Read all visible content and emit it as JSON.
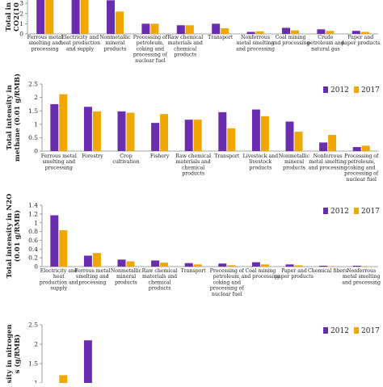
{
  "colors": {
    "series_2012": "#6a2db0",
    "series_2017": "#f0a800",
    "axis": "#888888"
  },
  "chart_data": [
    {
      "type": "bar",
      "ylabel": "Total in\nCO2(10",
      "yticks": [
        "0",
        "1",
        "2",
        "3"
      ],
      "ylim": [
        0,
        3.8
      ],
      "legend": {
        "show": false,
        "labels": [
          "2012",
          "2017"
        ]
      },
      "categories": [
        "Ferrous metal\nsmelting and\nprocessing",
        "Electricity and\nheat production\nand supply",
        "Nonmetallic\nmineral\nproducts",
        "Processing of\npetroleum,\ncoking and\nprocessing of\nnuclear fuel",
        "Raw chemical\nmaterials and\nchemical\nproducts",
        "Transport",
        "Nonferrous\nmetal smelting\nand processing",
        "Coal mining\nand processing",
        "Crude\npetroleum and\nnatural gas",
        "Paper and\npaper products"
      ],
      "series": [
        {
          "name": "2012",
          "values": [
            3.8,
            3.8,
            3.3,
            1.0,
            0.85,
            1.0,
            0.2,
            0.6,
            0.45,
            0.3
          ]
        },
        {
          "name": "2017",
          "values": [
            3.8,
            3.8,
            2.2,
            1.0,
            0.85,
            0.55,
            0.25,
            0.35,
            0.3,
            0.2
          ]
        }
      ]
    },
    {
      "type": "bar",
      "ylabel": "Total intensity in\nmethane (0.01 g/RMB)",
      "yticks": [
        "0",
        "0.5",
        "1",
        "1.5",
        "2",
        "2.5"
      ],
      "ylim": [
        0,
        2.5
      ],
      "legend": {
        "show": true,
        "labels": [
          "2012",
          "2017"
        ]
      },
      "categories": [
        "Ferrous metal\nsmelting and\nprocessing",
        "Forestry",
        "Crop\ncultivation",
        "Fishery",
        "Raw chemical\nmaterials and\nchemical\nproducts",
        "Transport",
        "Livestock and\nlivestock\nproducts",
        "Nonmetallic\nmineral\nproducts",
        "Nonferrous\nmetal smelting\nand processing",
        "Processing of\npetroleum,\ncoking and\nprocessing of\nnuclear fuel"
      ],
      "series": [
        {
          "name": "2012",
          "values": [
            1.75,
            1.65,
            1.48,
            1.05,
            1.17,
            1.45,
            1.55,
            1.1,
            0.32,
            0.15
          ]
        },
        {
          "name": "2017",
          "values": [
            2.12,
            1.48,
            1.43,
            1.38,
            1.17,
            0.85,
            1.3,
            0.72,
            0.6,
            0.2
          ]
        }
      ]
    },
    {
      "type": "bar",
      "ylabel": "Total intensity in N2O\n(0.01 g/RMB)",
      "yticks": [
        "0",
        "0.2",
        "0.4",
        "0.6",
        "0.8",
        "1",
        "1.2",
        "1.4"
      ],
      "ylim": [
        0,
        1.4
      ],
      "legend": {
        "show": true,
        "labels": [
          "2012",
          "2017"
        ]
      },
      "categories": [
        "Electricity and\nheat\nproduction and\nsupply",
        "Ferrous metal\nsmelting and\nprocessing",
        "Nonmetallic\nmineral\nproducts",
        "Raw chemical\nmaterials and\nchemical\nproducts",
        "Transport",
        "Processing of\npetroleum,\ncoking and\nprocessing of\nnuclear fuel",
        "Coal mining\nand processing",
        "Paper and\npaper products",
        "Chemical fibers",
        "Nonferrous\nmetal smelting\nand processing"
      ],
      "series": [
        {
          "name": "2012",
          "values": [
            1.17,
            0.25,
            0.16,
            0.14,
            0.08,
            0.07,
            0.1,
            0.05,
            0.02,
            0.02
          ]
        },
        {
          "name": "2017",
          "values": [
            0.83,
            0.31,
            0.12,
            0.09,
            0.05,
            0.03,
            0.05,
            0.03,
            0.01,
            0.01
          ]
        }
      ]
    },
    {
      "type": "bar",
      "ylabel": "sity in nitrogen\ns (g/RMB)",
      "yticks": [
        "0",
        "0.5",
        "1",
        "1.5",
        "2",
        "2.5"
      ],
      "ylim": [
        0,
        2.5
      ],
      "legend": {
        "show": true,
        "labels": [
          "2012",
          "2017"
        ]
      },
      "categories": [
        "",
        "",
        "",
        "",
        "",
        "",
        "",
        "",
        "",
        ""
      ],
      "series": [
        {
          "name": "2012",
          "values": [
            0.55,
            2.1,
            0.0,
            0.0,
            0.85,
            0,
            0,
            0,
            0,
            0
          ]
        },
        {
          "name": "2017",
          "values": [
            1.2,
            0.92,
            0.0,
            0.0,
            0.0,
            0,
            0,
            0,
            0,
            0
          ]
        }
      ]
    }
  ]
}
